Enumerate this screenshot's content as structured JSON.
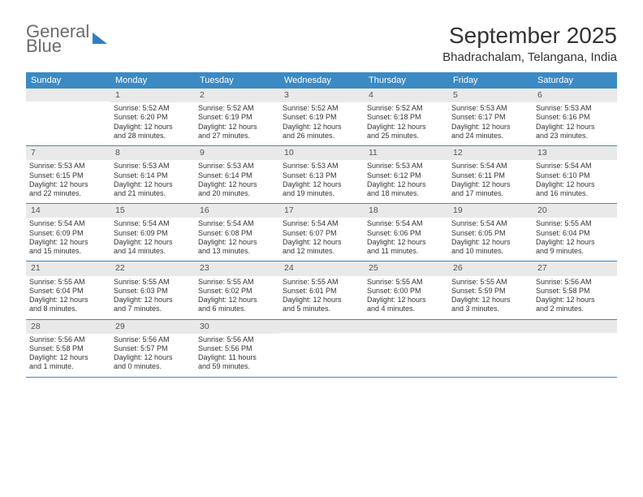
{
  "logo": {
    "line1": "General",
    "line2": "Blue"
  },
  "title": "September 2025",
  "location": "Bhadrachalam, Telangana, India",
  "header_bg": "#3b8ac4",
  "day_headers": [
    "Sunday",
    "Monday",
    "Tuesday",
    "Wednesday",
    "Thursday",
    "Friday",
    "Saturday"
  ],
  "weekday_bar_bg": "#e9e9e9",
  "text_color": "#333333",
  "font_size_details": 9,
  "weeks": [
    [
      {
        "day": "",
        "sunrise": "",
        "sunset": "",
        "daylight1": "",
        "daylight2": ""
      },
      {
        "day": "1",
        "sunrise": "Sunrise: 5:52 AM",
        "sunset": "Sunset: 6:20 PM",
        "daylight1": "Daylight: 12 hours",
        "daylight2": "and 28 minutes."
      },
      {
        "day": "2",
        "sunrise": "Sunrise: 5:52 AM",
        "sunset": "Sunset: 6:19 PM",
        "daylight1": "Daylight: 12 hours",
        "daylight2": "and 27 minutes."
      },
      {
        "day": "3",
        "sunrise": "Sunrise: 5:52 AM",
        "sunset": "Sunset: 6:19 PM",
        "daylight1": "Daylight: 12 hours",
        "daylight2": "and 26 minutes."
      },
      {
        "day": "4",
        "sunrise": "Sunrise: 5:52 AM",
        "sunset": "Sunset: 6:18 PM",
        "daylight1": "Daylight: 12 hours",
        "daylight2": "and 25 minutes."
      },
      {
        "day": "5",
        "sunrise": "Sunrise: 5:53 AM",
        "sunset": "Sunset: 6:17 PM",
        "daylight1": "Daylight: 12 hours",
        "daylight2": "and 24 minutes."
      },
      {
        "day": "6",
        "sunrise": "Sunrise: 5:53 AM",
        "sunset": "Sunset: 6:16 PM",
        "daylight1": "Daylight: 12 hours",
        "daylight2": "and 23 minutes."
      }
    ],
    [
      {
        "day": "7",
        "sunrise": "Sunrise: 5:53 AM",
        "sunset": "Sunset: 6:15 PM",
        "daylight1": "Daylight: 12 hours",
        "daylight2": "and 22 minutes."
      },
      {
        "day": "8",
        "sunrise": "Sunrise: 5:53 AM",
        "sunset": "Sunset: 6:14 PM",
        "daylight1": "Daylight: 12 hours",
        "daylight2": "and 21 minutes."
      },
      {
        "day": "9",
        "sunrise": "Sunrise: 5:53 AM",
        "sunset": "Sunset: 6:14 PM",
        "daylight1": "Daylight: 12 hours",
        "daylight2": "and 20 minutes."
      },
      {
        "day": "10",
        "sunrise": "Sunrise: 5:53 AM",
        "sunset": "Sunset: 6:13 PM",
        "daylight1": "Daylight: 12 hours",
        "daylight2": "and 19 minutes."
      },
      {
        "day": "11",
        "sunrise": "Sunrise: 5:53 AM",
        "sunset": "Sunset: 6:12 PM",
        "daylight1": "Daylight: 12 hours",
        "daylight2": "and 18 minutes."
      },
      {
        "day": "12",
        "sunrise": "Sunrise: 5:54 AM",
        "sunset": "Sunset: 6:11 PM",
        "daylight1": "Daylight: 12 hours",
        "daylight2": "and 17 minutes."
      },
      {
        "day": "13",
        "sunrise": "Sunrise: 5:54 AM",
        "sunset": "Sunset: 6:10 PM",
        "daylight1": "Daylight: 12 hours",
        "daylight2": "and 16 minutes."
      }
    ],
    [
      {
        "day": "14",
        "sunrise": "Sunrise: 5:54 AM",
        "sunset": "Sunset: 6:09 PM",
        "daylight1": "Daylight: 12 hours",
        "daylight2": "and 15 minutes."
      },
      {
        "day": "15",
        "sunrise": "Sunrise: 5:54 AM",
        "sunset": "Sunset: 6:09 PM",
        "daylight1": "Daylight: 12 hours",
        "daylight2": "and 14 minutes."
      },
      {
        "day": "16",
        "sunrise": "Sunrise: 5:54 AM",
        "sunset": "Sunset: 6:08 PM",
        "daylight1": "Daylight: 12 hours",
        "daylight2": "and 13 minutes."
      },
      {
        "day": "17",
        "sunrise": "Sunrise: 5:54 AM",
        "sunset": "Sunset: 6:07 PM",
        "daylight1": "Daylight: 12 hours",
        "daylight2": "and 12 minutes."
      },
      {
        "day": "18",
        "sunrise": "Sunrise: 5:54 AM",
        "sunset": "Sunset: 6:06 PM",
        "daylight1": "Daylight: 12 hours",
        "daylight2": "and 11 minutes."
      },
      {
        "day": "19",
        "sunrise": "Sunrise: 5:54 AM",
        "sunset": "Sunset: 6:05 PM",
        "daylight1": "Daylight: 12 hours",
        "daylight2": "and 10 minutes."
      },
      {
        "day": "20",
        "sunrise": "Sunrise: 5:55 AM",
        "sunset": "Sunset: 6:04 PM",
        "daylight1": "Daylight: 12 hours",
        "daylight2": "and 9 minutes."
      }
    ],
    [
      {
        "day": "21",
        "sunrise": "Sunrise: 5:55 AM",
        "sunset": "Sunset: 6:04 PM",
        "daylight1": "Daylight: 12 hours",
        "daylight2": "and 8 minutes."
      },
      {
        "day": "22",
        "sunrise": "Sunrise: 5:55 AM",
        "sunset": "Sunset: 6:03 PM",
        "daylight1": "Daylight: 12 hours",
        "daylight2": "and 7 minutes."
      },
      {
        "day": "23",
        "sunrise": "Sunrise: 5:55 AM",
        "sunset": "Sunset: 6:02 PM",
        "daylight1": "Daylight: 12 hours",
        "daylight2": "and 6 minutes."
      },
      {
        "day": "24",
        "sunrise": "Sunrise: 5:55 AM",
        "sunset": "Sunset: 6:01 PM",
        "daylight1": "Daylight: 12 hours",
        "daylight2": "and 5 minutes."
      },
      {
        "day": "25",
        "sunrise": "Sunrise: 5:55 AM",
        "sunset": "Sunset: 6:00 PM",
        "daylight1": "Daylight: 12 hours",
        "daylight2": "and 4 minutes."
      },
      {
        "day": "26",
        "sunrise": "Sunrise: 5:55 AM",
        "sunset": "Sunset: 5:59 PM",
        "daylight1": "Daylight: 12 hours",
        "daylight2": "and 3 minutes."
      },
      {
        "day": "27",
        "sunrise": "Sunrise: 5:56 AM",
        "sunset": "Sunset: 5:58 PM",
        "daylight1": "Daylight: 12 hours",
        "daylight2": "and 2 minutes."
      }
    ],
    [
      {
        "day": "28",
        "sunrise": "Sunrise: 5:56 AM",
        "sunset": "Sunset: 5:58 PM",
        "daylight1": "Daylight: 12 hours",
        "daylight2": "and 1 minute."
      },
      {
        "day": "29",
        "sunrise": "Sunrise: 5:56 AM",
        "sunset": "Sunset: 5:57 PM",
        "daylight1": "Daylight: 12 hours",
        "daylight2": "and 0 minutes."
      },
      {
        "day": "30",
        "sunrise": "Sunrise: 5:56 AM",
        "sunset": "Sunset: 5:56 PM",
        "daylight1": "Daylight: 11 hours",
        "daylight2": "and 59 minutes."
      },
      {
        "day": "",
        "sunrise": "",
        "sunset": "",
        "daylight1": "",
        "daylight2": ""
      },
      {
        "day": "",
        "sunrise": "",
        "sunset": "",
        "daylight1": "",
        "daylight2": ""
      },
      {
        "day": "",
        "sunrise": "",
        "sunset": "",
        "daylight1": "",
        "daylight2": ""
      },
      {
        "day": "",
        "sunrise": "",
        "sunset": "",
        "daylight1": "",
        "daylight2": ""
      }
    ]
  ]
}
